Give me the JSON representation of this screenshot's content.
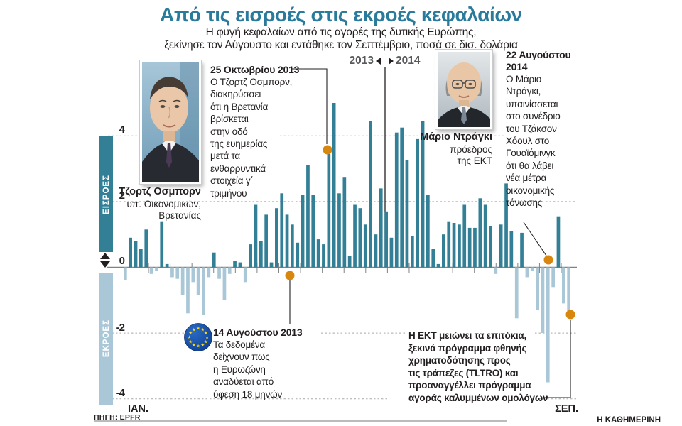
{
  "title": "Από τις εισροές στις εκροές κεφαλαίων",
  "subtitle": [
    "Η φυγή κεφαλαίων από τις αγορές της δυτικής Ευρώπης,",
    "ξεκίνησε τον Αύγουστο και εντάθηκε τον Σεπτέμβριο, ποσά σε δισ. δολάρια"
  ],
  "colors": {
    "accent_teal": "#2a7a9b",
    "inflow_bar": "#327f96",
    "outflow_bar": "#a9c7d6",
    "dot_orange": "#d8860d",
    "grid_gray": "#a7a9ac",
    "axis_gray": "#808285",
    "text_dark": "#231f20",
    "muted_gray": "#58595b",
    "eu_blue": "#0b3c8d",
    "eu_star_gold": "#ffd617"
  },
  "sidebar": {
    "inflow_label": "ΕΙΣΡΟΕΣ",
    "outflow_label": "ΕΚΡΟΕΣ"
  },
  "axis": {
    "tick_labels": [
      "4",
      "2",
      "0",
      "-2",
      "-4"
    ],
    "start_month": "ΙΑΝ.",
    "end_month": "ΣΕΠ.",
    "year_left": "2013",
    "year_right": "2014"
  },
  "people": {
    "osborne": {
      "name": "Τζορτζ Οσμπορν",
      "role": [
        "υπ. Οικονομικών,",
        "Βρετανίας"
      ]
    },
    "draghi": {
      "name": "Μάριο Ντράγκι",
      "role": [
        "πρόεδρος",
        "της ΕΚΤ"
      ]
    }
  },
  "annotations": {
    "osborne": {
      "title": "25 Οκτωβρίου 2013",
      "lines": [
        "Ο Τζορτζ Οσμπορν,",
        "διακηρύσσει",
        "ότι η Βρετανία",
        "βρίσκεται",
        "στην οδό",
        "της ευημερίας",
        "μετά τα",
        "ενθαρρυντικά",
        "στοιχεία γ΄",
        "τριμήνου"
      ]
    },
    "draghi": {
      "title_lines": [
        "22 Αυγούστου",
        "2014"
      ],
      "lines": [
        "Ο Μάριο",
        "Ντράγκι,",
        "υπαινίσσεται",
        "στο συνέδριο",
        "του Τζάκσον",
        "Χόουλ στο",
        "Γουαϊόμινγκ",
        "ότι θα λάβει",
        "νέα μέτρα",
        "οικονομικής",
        "τόνωσης"
      ]
    },
    "eurozone": {
      "title": "14 Αυγούστου 2013",
      "lines": [
        "Τα δεδομένα",
        "δείχνουν πως",
        "η Ευρωζώνη",
        "αναδύεται από",
        "ύφεση 18 μηνών"
      ]
    },
    "ecb": {
      "lines": [
        "Η ΕΚΤ μειώνει τα επιτόκια,",
        "ξεκινά πρόγραμμα φθηνής",
        "χρηματοδότησης προς",
        "τις τράπεζες (TLTRO) και",
        "προαναγγέλλει πρόγραμμα",
        "αγοράς καλυμμένων ομολόγων"
      ]
    }
  },
  "source": "ΠΗΓΗ: EPFR",
  "credit": "Η ΚΑΘΗΜΕΡΙΝΗ",
  "chart_data": {
    "type": "bar",
    "title": "Από τις εισροές στις εκροές κεφαλαίων",
    "unit": "δισ. δολάρια",
    "x_range": "ΙΑΝ. 2013 – ΣΕΠ. 2014 (εβδομαδιαίες ροές)",
    "ylim": [
      -4,
      4
    ],
    "grid": "dashed",
    "year_divider_after_index": 49,
    "values": [
      -0.4,
      0.9,
      0.8,
      0.55,
      1.15,
      -0.2,
      -0.1,
      1.4,
      0.1,
      -0.3,
      -0.35,
      -0.85,
      -1.4,
      -0.45,
      -0.85,
      -1.45,
      -0.3,
      0.45,
      -0.35,
      -1.0,
      -0.2,
      0.2,
      0.15,
      -0.45,
      0.7,
      1.9,
      0.8,
      1.6,
      0.15,
      1.8,
      2.25,
      1.6,
      1.3,
      0.75,
      2.2,
      3.1,
      2.2,
      0.85,
      0.7,
      3.45,
      5.0,
      2.25,
      2.75,
      0.35,
      1.9,
      1.8,
      1.3,
      4.45,
      1.0,
      2.4,
      1.7,
      0.9,
      4.1,
      4.25,
      3.25,
      0.95,
      3.9,
      4.45,
      2.2,
      0.55,
      0.1,
      1.0,
      1.4,
      1.35,
      1.3,
      1.9,
      1.2,
      1.2,
      2.1,
      1.9,
      1.25,
      -0.2,
      1.3,
      2.55,
      1.1,
      -1.55,
      1.05,
      -0.3,
      -0.1,
      -1.3,
      -2.0,
      -3.5,
      -0.6,
      1.55,
      -1.1,
      -1.35
    ]
  }
}
